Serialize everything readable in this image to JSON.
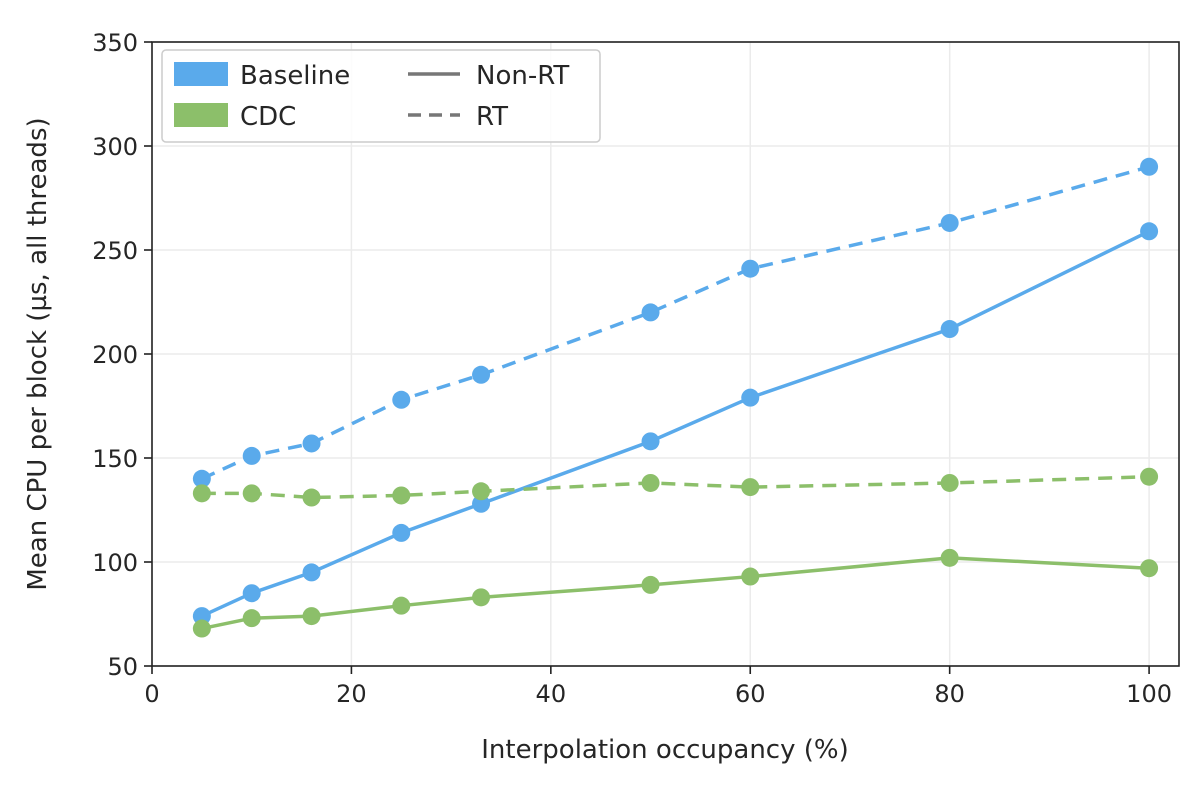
{
  "chart_data": {
    "type": "line",
    "title": "",
    "xlabel": "Interpolation occupancy (%)",
    "ylabel": "Mean CPU per block (µs, all threads)",
    "xlim": [
      0,
      103
    ],
    "ylim": [
      50,
      350
    ],
    "xticks": [
      "0",
      "20",
      "40",
      "60",
      "80",
      "100"
    ],
    "yticks": [
      "50",
      "100",
      "150",
      "200",
      "250",
      "300",
      "350"
    ],
    "grid": true,
    "legend_placement": "top-left",
    "legend": {
      "colors": [
        {
          "label": "Baseline",
          "color": "#5aaaeb"
        },
        {
          "label": "CDC",
          "color": "#8cbf6a"
        }
      ],
      "styles": [
        {
          "label": "Non-RT",
          "style": "solid"
        },
        {
          "label": "RT",
          "style": "dashed"
        }
      ]
    },
    "series": [
      {
        "group": "Baseline",
        "mode": "Non-RT",
        "style": "solid",
        "color": "#5aaaeb",
        "x": [
          5,
          10,
          16,
          25,
          33,
          50,
          60,
          80,
          100
        ],
        "y": [
          74,
          85,
          95,
          114,
          128,
          158,
          179,
          212,
          259
        ]
      },
      {
        "group": "Baseline",
        "mode": "RT",
        "style": "dashed",
        "color": "#5aaaeb",
        "x": [
          5,
          10,
          16,
          25,
          33,
          50,
          60,
          80,
          100
        ],
        "y": [
          140,
          151,
          157,
          178,
          190,
          220,
          241,
          263,
          290
        ]
      },
      {
        "group": "CDC",
        "mode": "Non-RT",
        "style": "solid",
        "color": "#8cbf6a",
        "x": [
          5,
          10,
          16,
          25,
          33,
          50,
          60,
          80,
          100
        ],
        "y": [
          68,
          73,
          74,
          79,
          83,
          89,
          93,
          102,
          97
        ]
      },
      {
        "group": "CDC",
        "mode": "RT",
        "style": "dashed",
        "color": "#8cbf6a",
        "x": [
          5,
          10,
          16,
          25,
          33,
          50,
          60,
          80,
          100
        ],
        "y": [
          133,
          133,
          131,
          132,
          134,
          138,
          136,
          138,
          141
        ]
      }
    ]
  }
}
